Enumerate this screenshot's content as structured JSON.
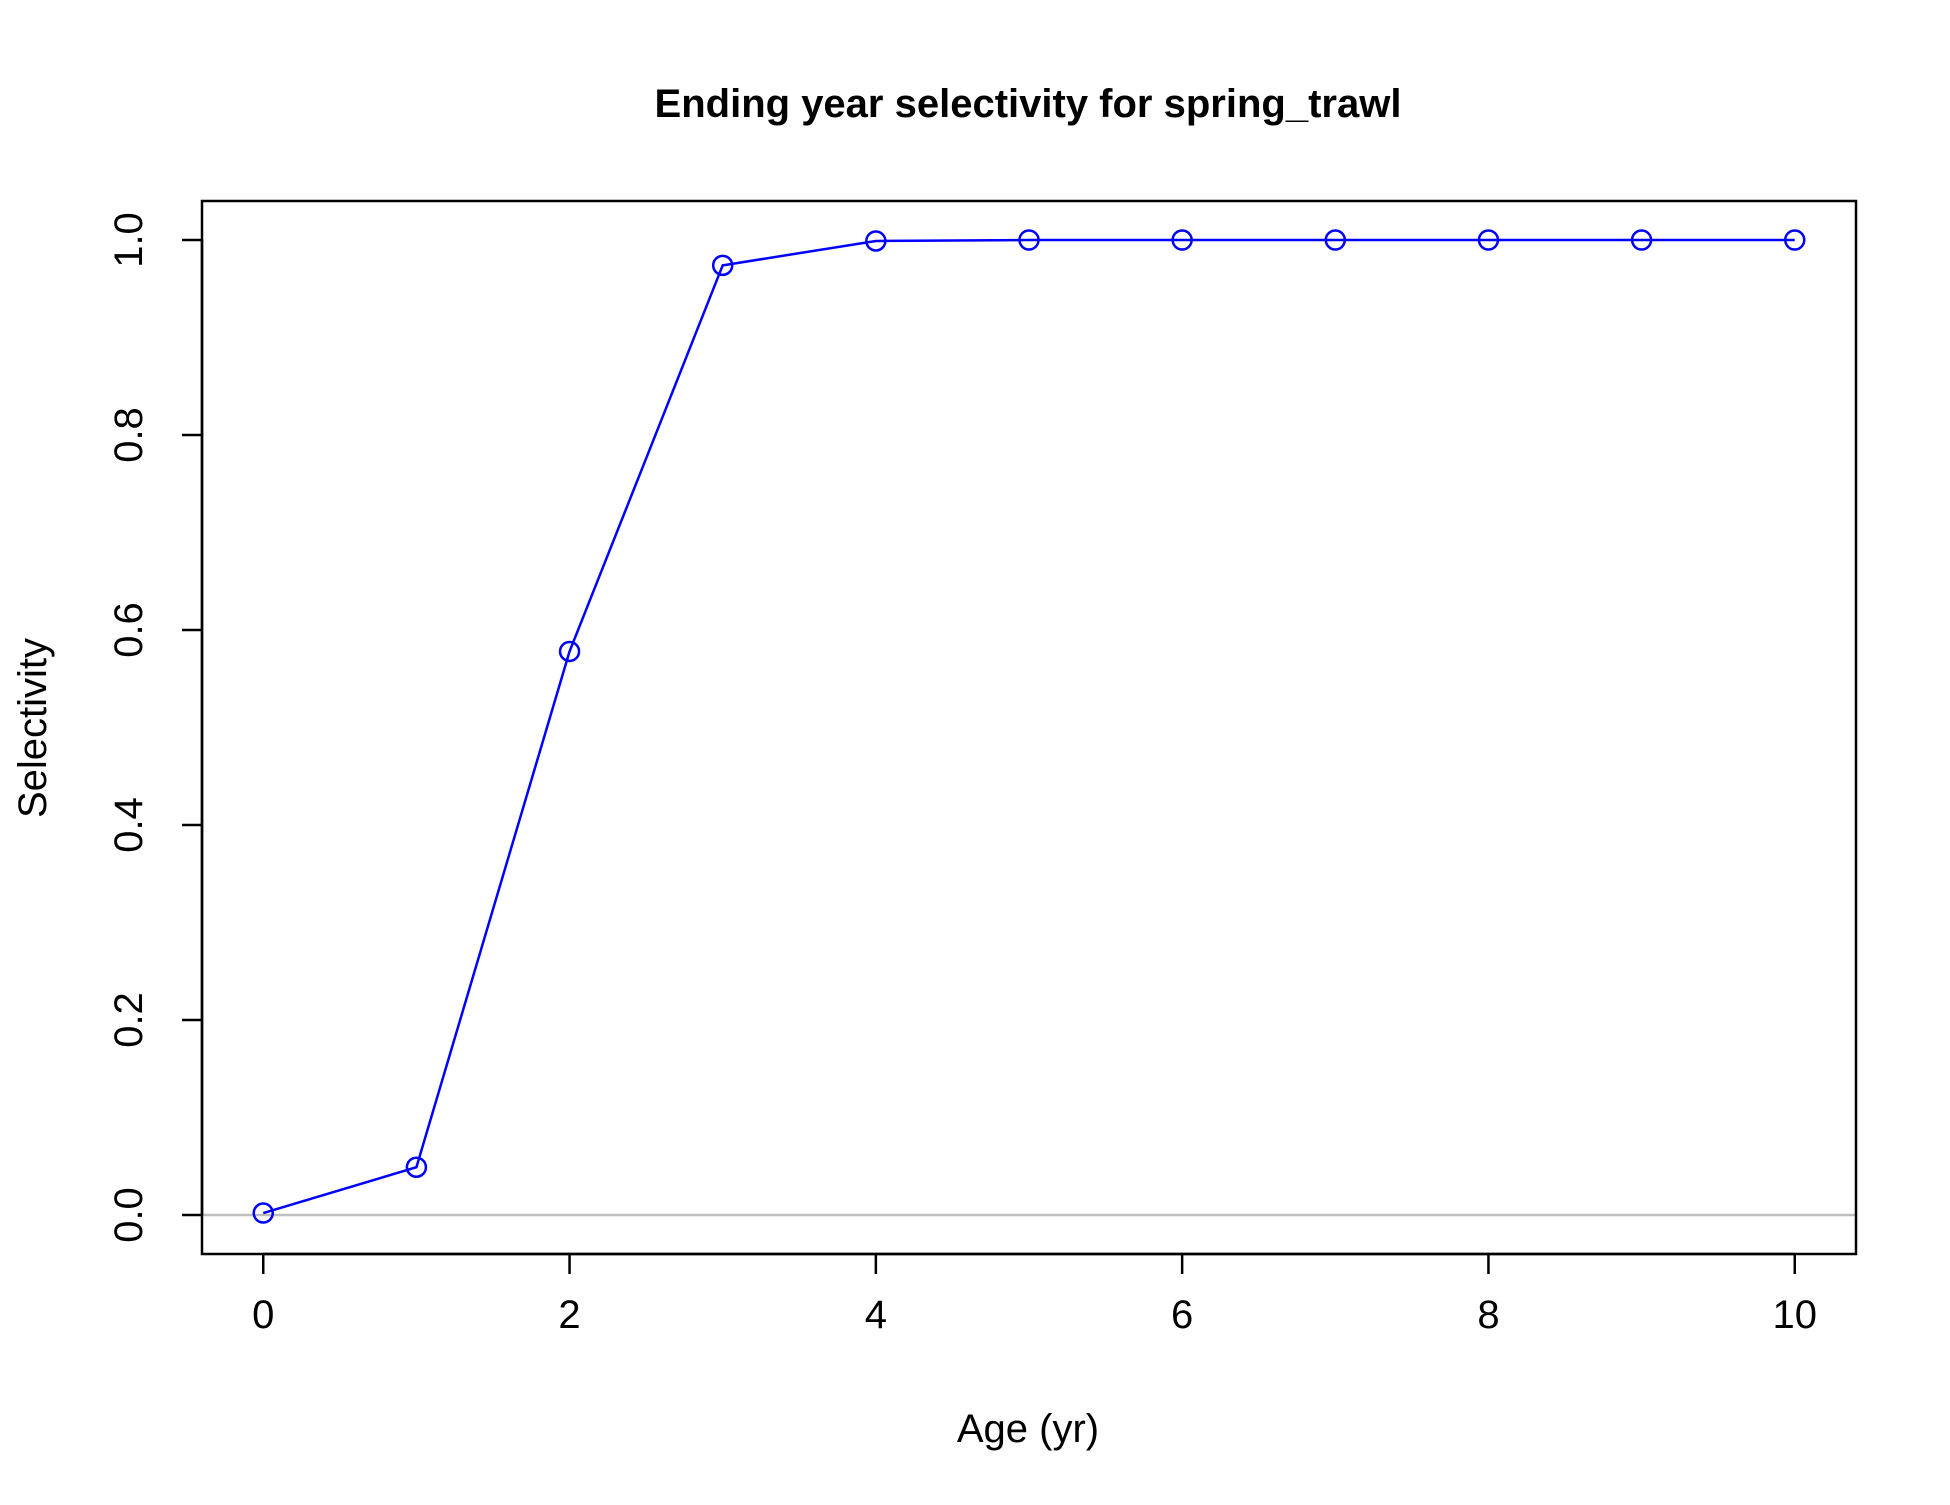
{
  "chart_data": {
    "type": "line",
    "title": "Ending year selectivity for spring_trawl",
    "xlabel": "Age (yr)",
    "ylabel": "Selectivity",
    "x": [
      0,
      1,
      2,
      3,
      4,
      5,
      6,
      7,
      8,
      9,
      10
    ],
    "series": [
      {
        "values": [
          0.002,
          0.049,
          0.578,
          0.974,
          0.999,
          1.0,
          1.0,
          1.0,
          1.0,
          1.0,
          1.0
        ],
        "color": "#0000FF",
        "marker": "open-circle"
      }
    ],
    "xlim": [
      -0.4,
      10.4
    ],
    "ylim": [
      -0.04,
      1.04
    ],
    "x_ticks": [
      "0",
      "2",
      "4",
      "6",
      "8",
      "10"
    ],
    "y_ticks": [
      "0.0",
      "0.2",
      "0.4",
      "0.6",
      "0.8",
      "1.0"
    ],
    "reference_line": {
      "y": 0,
      "color": "#BEBEBE"
    },
    "grid": false,
    "legend": "none"
  }
}
